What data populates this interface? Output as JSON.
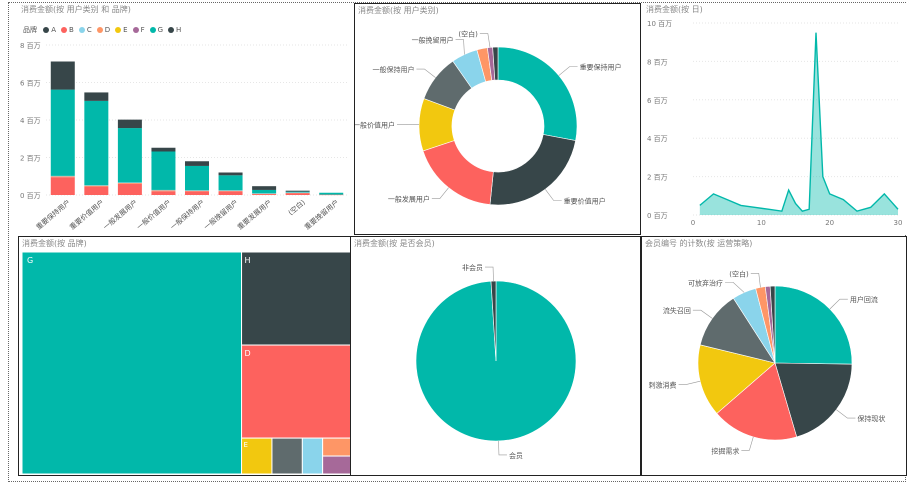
{
  "colors": {
    "A": "#374649",
    "B": "#FD625E",
    "C": "#8AD4EB",
    "D": "#FE9666",
    "E": "#F2C80F",
    "F": "#A66999",
    "G": "#01B8AA",
    "H": "#374649",
    "teal": "#01B8AA",
    "dark": "#374649",
    "red": "#FD625E",
    "yellow": "#F2C80F",
    "gray": "#5F6B6D",
    "lightblue": "#8AD4EB",
    "orange": "#FE9666",
    "purple": "#A66999"
  },
  "chart_data": [
    {
      "id": "stacked",
      "type": "bar",
      "title": "消费金额(按 用户类别 和 品牌)",
      "legend_title": "品牌",
      "legend": [
        "A",
        "B",
        "C",
        "D",
        "E",
        "F",
        "G",
        "H"
      ],
      "categories": [
        "重要保持用户",
        "重要价值用户",
        "一般发展用户",
        "一般价值用户",
        "一般保持用户",
        "一般挽留用户",
        "重要发展用户",
        "(空白)",
        "重要挽留用户"
      ],
      "series": [
        {
          "name": "B",
          "color": "#FD625E",
          "values": [
            0.95,
            0.45,
            0.6,
            0.2,
            0.2,
            0.2,
            0.05,
            0.1,
            0.02
          ]
        },
        {
          "name": "D",
          "color": "#FE9666",
          "values": [
            0.05,
            0.05,
            0.05,
            0.05,
            0.03,
            0.03,
            0.02,
            0.02,
            0.0
          ]
        },
        {
          "name": "C",
          "color": "#8AD4EB",
          "values": [
            0.02,
            0.02,
            0.02,
            0.02,
            0.02,
            0.02,
            0.02,
            0.02,
            0.0
          ]
        },
        {
          "name": "G",
          "color": "#01B8AA",
          "values": [
            4.6,
            4.5,
            2.9,
            2.05,
            1.3,
            0.8,
            0.18,
            0.04,
            0.1
          ]
        },
        {
          "name": "H",
          "color": "#374649",
          "values": [
            1.5,
            0.45,
            0.45,
            0.2,
            0.25,
            0.15,
            0.2,
            0.05,
            0.0
          ]
        }
      ],
      "yticks": [
        "0 百万",
        "2 百万",
        "4 百万",
        "6 百万",
        "8 百万"
      ],
      "ylim": [
        0,
        8
      ]
    },
    {
      "id": "donut",
      "type": "pie",
      "title": "消费金额(按 用户类别)",
      "slices": [
        {
          "label": "重要保持用户",
          "value": 26,
          "color": "#01B8AA"
        },
        {
          "label": "重要价值用户",
          "value": 22,
          "color": "#374649"
        },
        {
          "label": "一般发展用户",
          "value": 17,
          "color": "#FD625E"
        },
        {
          "label": "一般价值用户",
          "value": 10,
          "color": "#F2C80F"
        },
        {
          "label": "一般保持用户",
          "value": 9,
          "color": "#5F6B6D"
        },
        {
          "label": "一般挽留用户",
          "value": 5,
          "color": "#8AD4EB"
        },
        {
          "label": "",
          "value": 2,
          "color": "#FE9666"
        },
        {
          "label": "(空白)",
          "value": 1,
          "color": "#A66999"
        },
        {
          "label": "",
          "value": 1,
          "color": "#374649"
        }
      ]
    },
    {
      "id": "area",
      "type": "area",
      "title": "消费金额(按 日)",
      "x": [
        1,
        3,
        5,
        7,
        9,
        11,
        13,
        14,
        15,
        16,
        17,
        18,
        19,
        20,
        22,
        24,
        26,
        28,
        30
      ],
      "y": [
        0.5,
        1.1,
        0.8,
        0.5,
        0.4,
        0.3,
        0.2,
        1.3,
        0.6,
        0.2,
        0.3,
        9.5,
        2.0,
        1.1,
        0.8,
        0.2,
        0.4,
        1.1,
        0.3
      ],
      "xticks": [
        "0",
        "10",
        "20",
        "30"
      ],
      "yticks": [
        "0 百万",
        "2 百万",
        "4 百万",
        "6 百万",
        "8 百万",
        "10 百万"
      ],
      "xlim": [
        0,
        30
      ],
      "ylim": [
        0,
        10
      ]
    },
    {
      "id": "treemap",
      "type": "treemap",
      "title": "消费金额(按 品牌)",
      "items": [
        {
          "label": "G",
          "value": 67,
          "color": "#01B8AA"
        },
        {
          "label": "H",
          "value": 14,
          "color": "#374649"
        },
        {
          "label": "D",
          "value": 14,
          "color": "#FD625E"
        },
        {
          "label": "E",
          "value": 1.5,
          "color": "#F2C80F"
        },
        {
          "label": "",
          "value": 1.5,
          "color": "#5F6B6D"
        },
        {
          "label": "",
          "value": 1,
          "color": "#8AD4EB"
        },
        {
          "label": "",
          "value": 0.7,
          "color": "#FE9666"
        },
        {
          "label": "",
          "value": 0.7,
          "color": "#A66999"
        }
      ]
    },
    {
      "id": "pie-member",
      "type": "pie",
      "title": "消费金额(按 是否会员)",
      "slices": [
        {
          "label": "会员",
          "value": 99,
          "color": "#01B8AA"
        },
        {
          "label": "非会员",
          "value": 1,
          "color": "#374649"
        }
      ]
    },
    {
      "id": "pie-strategy",
      "type": "pie",
      "title": "会员编号 的计数(按 运营策略)",
      "slices": [
        {
          "label": "用户回流",
          "value": 25,
          "color": "#01B8AA"
        },
        {
          "label": "保持现状",
          "value": 20,
          "color": "#374649"
        },
        {
          "label": "挖掘需求",
          "value": 18,
          "color": "#FD625E"
        },
        {
          "label": "刺激消费",
          "value": 15,
          "color": "#F2C80F"
        },
        {
          "label": "流失召回",
          "value": 12,
          "color": "#5F6B6D"
        },
        {
          "label": "可放弃治疗",
          "value": 5,
          "color": "#8AD4EB"
        },
        {
          "label": "(空白)",
          "value": 2,
          "color": "#FE9666"
        },
        {
          "label": "",
          "value": 1,
          "color": "#A66999"
        },
        {
          "label": "",
          "value": 1,
          "color": "#374649"
        }
      ]
    }
  ]
}
